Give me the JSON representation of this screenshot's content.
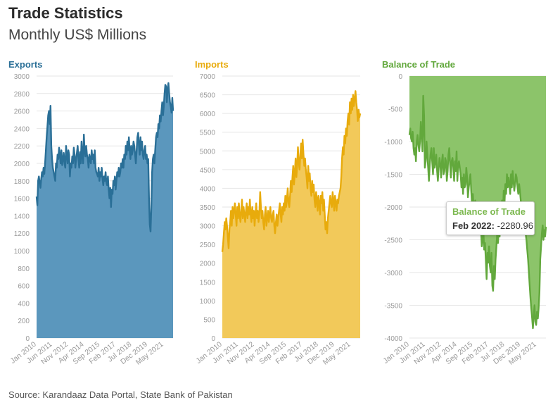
{
  "header": {
    "title": "Trade Statistics",
    "subtitle": "Monthly US$ Millions"
  },
  "source": "Source: Karandaaz Data Portal, State Bank of Pakistan",
  "tooltip": {
    "title": "Balance of Trade",
    "label": "Feb 2022:",
    "value": "-2280.96"
  },
  "chart_data": [
    {
      "type": "area",
      "title": "Exports",
      "color": "#2a6f97",
      "fill": "#5b97bd",
      "x_ticks": [
        "Jan 2010",
        "Jun 2011",
        "Nov 2012",
        "Apr 2014",
        "Sep 2015",
        "Feb 2017",
        "Jul 2018",
        "Dec 2019",
        "May 2021"
      ],
      "ylim": [
        0,
        3000
      ],
      "y_ticks": [
        0,
        200,
        400,
        600,
        800,
        1000,
        1200,
        1400,
        1600,
        1800,
        2000,
        2200,
        2400,
        2600,
        2800,
        3000
      ],
      "x_start": "Jan 2010",
      "x_end": "Mar 2022",
      "values": [
        1620,
        1520,
        1800,
        1850,
        1780,
        1720,
        1820,
        1900,
        1850,
        1950,
        1880,
        2000,
        2150,
        2300,
        2420,
        2550,
        2600,
        2450,
        2660,
        2200,
        2050,
        1950,
        1900,
        1850,
        1800,
        2000,
        1950,
        2100,
        2050,
        2180,
        2100,
        2000,
        2150,
        1980,
        2050,
        2120,
        2000,
        1950,
        2200,
        2100,
        2000,
        2150,
        2100,
        1850,
        2000,
        1950,
        2080,
        2000,
        2180,
        2100,
        1950,
        2050,
        2120,
        2200,
        2050,
        1950,
        2130,
        2000,
        2250,
        2100,
        2000,
        2330,
        2150,
        2080,
        2200,
        2100,
        2050,
        1950,
        2100,
        2050,
        2000,
        2150,
        2050,
        2100,
        2000,
        2150,
        1950,
        1900,
        1880,
        1850,
        1950,
        1800,
        1900,
        1850,
        1950,
        1820,
        1750,
        1850,
        1800,
        1900,
        1780,
        1750,
        1850,
        1700,
        1600,
        1720,
        1500,
        1700,
        1650,
        1800,
        1750,
        1850,
        1700,
        1800,
        1900,
        1850,
        1950,
        1850,
        1900,
        2000,
        1950,
        2050,
        1950,
        2100,
        2050,
        2200,
        2100,
        2250,
        2150,
        2300,
        2150,
        2050,
        2200,
        2100,
        2150,
        2250,
        2200,
        2100,
        2000,
        2150,
        2300,
        2350,
        2200,
        2100,
        2300,
        2150,
        2250,
        2100,
        2050,
        2150,
        2200,
        2050,
        2100,
        2000,
        2050,
        1600,
        1300,
        1220,
        1500,
        1900,
        2050,
        2100,
        2000,
        2150,
        2300,
        2350,
        2300,
        2450,
        2400,
        2550,
        2480,
        2600,
        2700,
        2550,
        2650,
        2800,
        2900,
        2880,
        2700,
        2850,
        2920,
        2800,
        2700,
        2650,
        2580,
        2750,
        2600
      ]
    },
    {
      "type": "area",
      "title": "Imports",
      "color": "#e8ab0c",
      "fill": "#f2c95a",
      "x_ticks": [
        "Jan 2010",
        "Jun 2011",
        "Nov 2012",
        "Apr 2014",
        "Sep 2015",
        "Feb 2017",
        "Jul 2018",
        "Dec 2019",
        "May 2021"
      ],
      "ylim": [
        0,
        7000
      ],
      "y_ticks": [
        0,
        500,
        1000,
        1500,
        2000,
        2500,
        3000,
        3500,
        4000,
        4500,
        5000,
        5500,
        6000,
        6500,
        7000
      ],
      "x_start": "Jan 2010",
      "x_end": "Mar 2022",
      "values": [
        2300,
        2500,
        2800,
        3100,
        2900,
        3200,
        3000,
        2700,
        2400,
        2900,
        3100,
        3400,
        3000,
        3500,
        3200,
        3400,
        3600,
        3300,
        3000,
        3500,
        3200,
        3600,
        3300,
        3100,
        3400,
        3700,
        3200,
        3500,
        3300,
        3100,
        3400,
        3600,
        3200,
        3500,
        3300,
        3700,
        3300,
        3100,
        3500,
        3200,
        3400,
        3000,
        3300,
        3600,
        3200,
        3400,
        3100,
        3300,
        3900,
        3500,
        3200,
        3400,
        3100,
        2900,
        3300,
        3500,
        3000,
        3200,
        3400,
        3100,
        3300,
        3500,
        3200,
        3100,
        3300,
        3400,
        3000,
        2800,
        3100,
        3300,
        3000,
        3200,
        3400,
        3600,
        3300,
        3100,
        3500,
        3300,
        3600,
        3400,
        3800,
        3500,
        3700,
        4000,
        3600,
        3500,
        3800,
        4200,
        3900,
        4300,
        4600,
        4100,
        4400,
        4800,
        4300,
        4600,
        5100,
        4700,
        4500,
        4900,
        5200,
        4800,
        5300,
        4900,
        4600,
        4800,
        4500,
        4300,
        4000,
        4600,
        4200,
        4400,
        4000,
        3800,
        4200,
        3900,
        4100,
        3700,
        3500,
        3900,
        3700,
        3400,
        3800,
        3600,
        3300,
        3800,
        3600,
        3900,
        3400,
        3700,
        3300,
        2900,
        3100,
        2800,
        3200,
        3400,
        3600,
        3800,
        3600,
        3500,
        3900,
        3700,
        3400,
        3800,
        3600,
        3400,
        3700,
        3600,
        3800,
        3900,
        4000,
        4300,
        4800,
        5100,
        4900,
        5400,
        5200,
        5600,
        5400,
        5800,
        6000,
        5700,
        6300,
        6000,
        6400,
        6100,
        6500,
        6200,
        6400,
        6600,
        6300,
        6100,
        5800,
        6100,
        5900,
        6000
      ]
    },
    {
      "type": "area",
      "title": "Balance of Trade",
      "color": "#62a83c",
      "fill": "#8cc46a",
      "x_ticks": [
        "Jan 2010",
        "Jun 2011",
        "Nov 2012",
        "Apr 2014",
        "Sep 2015",
        "Feb 2017",
        "Jul 2018",
        "Dec 2019",
        "May 2021"
      ],
      "ylim": [
        -4000,
        0
      ],
      "y_ticks": [
        0,
        -500,
        -1000,
        -1500,
        -2000,
        -2500,
        -3000,
        -3500,
        -4000
      ],
      "x_start": "Jan 2010",
      "x_end": "Mar 2022",
      "values": [
        -900,
        -800,
        -950,
        -1000,
        -850,
        -1100,
        -1200,
        -1100,
        -1300,
        -1000,
        -900,
        -1050,
        -1150,
        -1000,
        -700,
        -900,
        -1150,
        -300,
        -600,
        -1400,
        -1300,
        -1000,
        -1200,
        -1400,
        -1600,
        -1350,
        -1200,
        -1100,
        -1300,
        -1500,
        -1100,
        -1400,
        -1300,
        -1200,
        -1450,
        -1600,
        -1400,
        -1250,
        -1350,
        -1550,
        -1300,
        -1200,
        -1500,
        -1450,
        -1250,
        -1300,
        -1600,
        -1450,
        -1200,
        -1100,
        -1350,
        -1550,
        -1300,
        -1250,
        -1400,
        -1600,
        -1300,
        -1450,
        -1150,
        -1600,
        -1350,
        -1300,
        -1400,
        -1500,
        -1700,
        -1550,
        -1800,
        -1500,
        -1700,
        -1650,
        -1400,
        -1550,
        -1850,
        -1700,
        -1600,
        -1500,
        -1750,
        -1950,
        -1800,
        -2000,
        -2150,
        -1900,
        -2100,
        -2350,
        -2050,
        -2200,
        -2400,
        -2150,
        -2300,
        -2600,
        -2500,
        -2350,
        -2650,
        -2550,
        -2800,
        -3100,
        -2700,
        -2850,
        -2600,
        -2900,
        -3000,
        -2700,
        -3200,
        -3280,
        -2900,
        -3100,
        -2800,
        -2600,
        -2400,
        -2550,
        -2300,
        -2450,
        -2100,
        -2250,
        -1900,
        -2100,
        -1750,
        -1950,
        -1650,
        -1800,
        -1500,
        -1700,
        -1550,
        -1650,
        -1800,
        -1500,
        -1700,
        -1450,
        -1600,
        -1750,
        -1650,
        -1500,
        -1550,
        -1700,
        -1800,
        -1650,
        -1750,
        -1900,
        -2000,
        -2150,
        -2050,
        -2300,
        -2200,
        -2400,
        -2500,
        -2650,
        -2800,
        -3000,
        -3200,
        -3400,
        -3550,
        -3700,
        -3850,
        -3650,
        -3500,
        -3750,
        -3800,
        -3600,
        -3700,
        -3550,
        -3300,
        -2800,
        -2600,
        -2400,
        -2280.96,
        -2500,
        -2350,
        -2450,
        -2300
      ]
    }
  ]
}
